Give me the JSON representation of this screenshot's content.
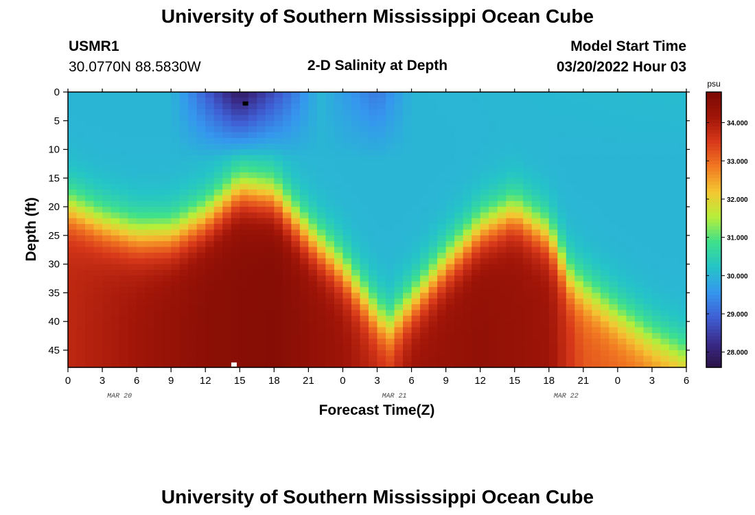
{
  "header": {
    "title": "University of Southern Mississippi Ocean Cube",
    "station_id": "USMR1",
    "station_coords": "30.0770N  88.5830W",
    "plot_title": "2-D Salinity at Depth",
    "model_start_label": "Model Start Time",
    "model_start_value": "03/20/2022 Hour 03"
  },
  "footer": {
    "title": "University of Southern Mississippi Ocean Cube"
  },
  "chart_data": {
    "type": "heatmap",
    "title": "2-D Salinity at Depth",
    "xlabel": "Forecast Time(Z)",
    "ylabel": "Depth (ft)",
    "x_tick_labels": [
      "0",
      "3",
      "6",
      "9",
      "12",
      "15",
      "18",
      "21",
      "0",
      "3",
      "6",
      "9",
      "12",
      "15",
      "18",
      "21",
      "0",
      "3",
      "6"
    ],
    "x_date_labels": [
      {
        "label": "MAR 20",
        "tick_index": 1.5
      },
      {
        "label": "MAR 21",
        "tick_index": 9.5
      },
      {
        "label": "MAR 22",
        "tick_index": 14.5
      }
    ],
    "x_range_hours": [
      0,
      54
    ],
    "y_tick_labels": [
      "0",
      "5",
      "10",
      "15",
      "20",
      "25",
      "30",
      "35",
      "40",
      "45"
    ],
    "y_range": [
      0,
      48
    ],
    "colorbar": {
      "unit": "psu",
      "range": [
        27.6,
        34.8
      ],
      "tick_labels": [
        "28.000",
        "29.000",
        "30.000",
        "31.000",
        "32.000",
        "33.000",
        "34.000"
      ],
      "tick_values": [
        28,
        29,
        30,
        31,
        32,
        33,
        34
      ],
      "colors": [
        "#2a1245",
        "#3a2c8c",
        "#3f5fd4",
        "#3597ee",
        "#25c4c8",
        "#3ee08c",
        "#b6ee3a",
        "#f4c732",
        "#f27a22",
        "#d8391a",
        "#a01508",
        "#7a0a03"
      ]
    },
    "halocline_depth_ft": [
      {
        "hour": 0,
        "depth": 20
      },
      {
        "hour": 3,
        "depth": 23
      },
      {
        "hour": 6,
        "depth": 25
      },
      {
        "hour": 9,
        "depth": 25
      },
      {
        "hour": 12,
        "depth": 22
      },
      {
        "hour": 15,
        "depth": 17
      },
      {
        "hour": 18,
        "depth": 18
      },
      {
        "hour": 21,
        "depth": 25
      },
      {
        "hour": 24,
        "depth": 31
      },
      {
        "hour": 27,
        "depth": 39
      },
      {
        "hour": 28,
        "depth": 41
      },
      {
        "hour": 30,
        "depth": 37
      },
      {
        "hour": 33,
        "depth": 30
      },
      {
        "hour": 36,
        "depth": 24
      },
      {
        "hour": 39,
        "depth": 21
      },
      {
        "hour": 42,
        "depth": 25
      },
      {
        "hour": 44,
        "depth": 33
      },
      {
        "hour": 48,
        "depth": 39
      },
      {
        "hour": 51,
        "depth": 43
      },
      {
        "hour": 54,
        "depth": 46
      }
    ],
    "surface_salinity_psu": [
      {
        "hour": 0,
        "value": 30.0
      },
      {
        "hour": 9,
        "value": 30.0
      },
      {
        "hour": 11,
        "value": 29.3
      },
      {
        "hour": 15,
        "value": 27.8
      },
      {
        "hour": 19,
        "value": 29.0
      },
      {
        "hour": 22,
        "value": 30.0
      },
      {
        "hour": 27,
        "value": 29.2
      },
      {
        "hour": 30,
        "value": 30.0
      },
      {
        "hour": 54,
        "value": 30.1
      }
    ],
    "bottom_salinity_psu": [
      {
        "hour": 0,
        "value": 33.8
      },
      {
        "hour": 12,
        "value": 34.5
      },
      {
        "hour": 18,
        "value": 34.6
      },
      {
        "hour": 24,
        "value": 34.2
      },
      {
        "hour": 27,
        "value": 33.8
      },
      {
        "hour": 28,
        "value": 33.6
      },
      {
        "hour": 30,
        "value": 34.2
      },
      {
        "hour": 36,
        "value": 34.4
      },
      {
        "hour": 42,
        "value": 34.2
      },
      {
        "hour": 45,
        "value": 33.2
      },
      {
        "hour": 54,
        "value": 32.8
      }
    ],
    "markers": [
      {
        "hour": 15.5,
        "depth": 2,
        "color": "#000000"
      },
      {
        "hour": 14.5,
        "depth": 47.5,
        "color": "#ffffff"
      }
    ]
  }
}
